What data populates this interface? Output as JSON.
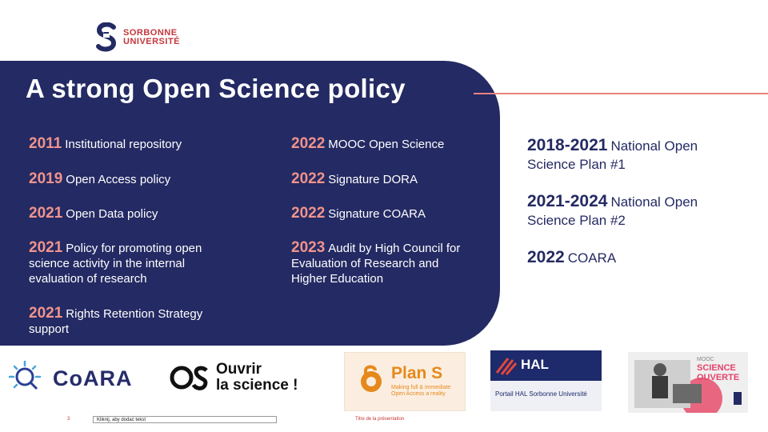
{
  "logo": {
    "line1": "SORBONNE",
    "line2": "UNIVERSITÉ",
    "accent": "#c5363c"
  },
  "panel": {
    "bg": "#242a63",
    "title": "A strong Open Science policy",
    "left_items": [
      {
        "year": "2011",
        "text": "Institutional repository"
      },
      {
        "year": "2019",
        "text": "Open Access policy"
      },
      {
        "year": "2021",
        "text": "Open Data policy"
      },
      {
        "year": "2021",
        "text": "Policy for promoting open science activity in the internal evaluation of research"
      },
      {
        "year": "2021",
        "text": "Rights Retention Strategy support"
      }
    ],
    "right_items": [
      {
        "year": "2022",
        "text": "MOOC Open Science"
      },
      {
        "year": "2022",
        "text": "Signature DORA"
      },
      {
        "year": "2022",
        "text": "Signature COARA"
      },
      {
        "year": "2023",
        "text": "Audit by High Council for Evaluation of Research and Higher Education"
      }
    ]
  },
  "side": {
    "items": [
      {
        "year": "2018-2021",
        "text": "National Open Science Plan #1"
      },
      {
        "year": "2021-2024",
        "text": "National Open Science Plan #2"
      },
      {
        "year": "2022",
        "text": "COARA"
      }
    ]
  },
  "logos": {
    "coara": "CoARA",
    "ouvrir_line1": "Ouvrir",
    "ouvrir_line2": "la science !",
    "plans_title": "Plan S",
    "plans_sub": "Making full & immediate Open Access a reality",
    "hal_title": "HAL",
    "hal_sub": "Portail HAL Sorbonne Université",
    "mooc_small": "MOOC",
    "mooc_line1": "SCIENCE",
    "mooc_line2": "OUVERTE"
  },
  "footer": {
    "page_number": "3",
    "placeholder": "Kliknij, aby dodać tekst",
    "presentation_title": "Titre de la présentation"
  },
  "colors": {
    "accent_pink": "#f0938c",
    "navy": "#242a63"
  }
}
